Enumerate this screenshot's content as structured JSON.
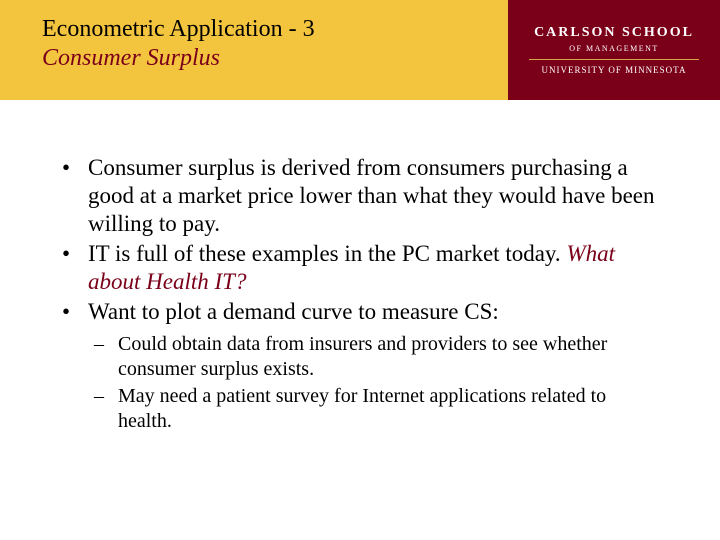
{
  "header": {
    "title_line1": "Econometric Application - 3",
    "title_line2": "Consumer Surplus",
    "logo_main": "CARLSON SCHOOL",
    "logo_sub1": "OF MANAGEMENT",
    "logo_sub2": "UNIVERSITY OF MINNESOTA"
  },
  "bullets": {
    "b1": "Consumer surplus is derived from consumers purchasing a good at a market price lower than what they would have been willing to pay.",
    "b2a": "IT is full of these examples in the PC market today. ",
    "b2b": "What about Health IT?",
    "b3": "Want to plot a demand curve to measure CS:",
    "s1": "Could obtain data from insurers and providers to see whether consumer surplus exists.",
    "s2": "May need a patient survey for Internet applications related to health."
  },
  "colors": {
    "maroon": "#7a0019",
    "gold": "#f3c53f",
    "gold_line": "#d4a84a",
    "text": "#000000",
    "bg": "#ffffff"
  }
}
